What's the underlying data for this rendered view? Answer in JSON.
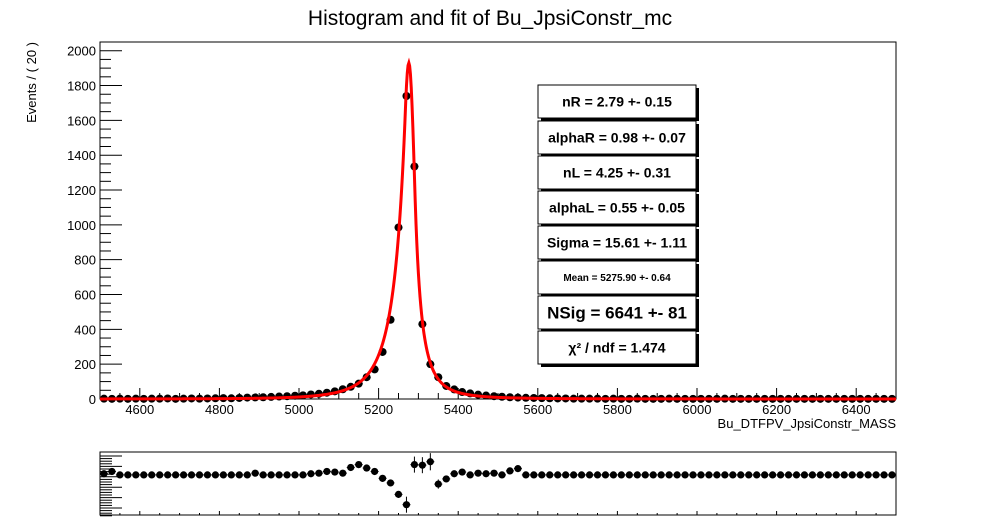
{
  "chart_data": [
    {
      "type": "scatter",
      "title": "Histogram and fit of Bu_JpsiConstr_mc",
      "xlabel": "Bu_DTFPV_JpsiConstr_MASS",
      "ylabel": "Events / ( 20 )",
      "xlim": [
        4500,
        6500
      ],
      "ylim": [
        0,
        2050
      ],
      "x_ticks": [
        4600,
        4800,
        5000,
        5200,
        5400,
        5600,
        5800,
        6000,
        6200,
        6400
      ],
      "y_ticks": [
        0,
        200,
        400,
        600,
        800,
        1000,
        1200,
        1400,
        1600,
        1800,
        2000
      ],
      "grid": false,
      "colors": {
        "data": "#000000",
        "fit": "#ff0000"
      },
      "series": [
        {
          "kind": "points",
          "x": [
            4510,
            4530,
            4550,
            4570,
            4590,
            4610,
            4630,
            4650,
            4670,
            4690,
            4710,
            4730,
            4750,
            4770,
            4790,
            4810,
            4830,
            4850,
            4870,
            4890,
            4910,
            4930,
            4950,
            4970,
            4990,
            5010,
            5030,
            5050,
            5070,
            5090,
            5110,
            5130,
            5150,
            5170,
            5190,
            5210,
            5230,
            5250,
            5270,
            5290,
            5310,
            5330,
            5350,
            5370,
            5390,
            5410,
            5430,
            5450,
            5470,
            5490,
            5510,
            5530,
            5550,
            5570,
            5590,
            5610,
            5630,
            5650,
            5670,
            5690,
            5710,
            5730,
            5750,
            5770,
            5790,
            5810,
            5830,
            5850,
            5870,
            5890,
            5910,
            5930,
            5950,
            5970,
            5990,
            6010,
            6030,
            6050,
            6070,
            6090,
            6110,
            6130,
            6150,
            6170,
            6190,
            6210,
            6230,
            6250,
            6270,
            6290,
            6310,
            6330,
            6350,
            6370,
            6390,
            6410,
            6430,
            6450,
            6470,
            6490
          ],
          "y": [
            2,
            1,
            2,
            1,
            2,
            1,
            2,
            2,
            3,
            1,
            2,
            3,
            2,
            3,
            4,
            5,
            4,
            6,
            8,
            9,
            10,
            12,
            14,
            16,
            19,
            21,
            26,
            30,
            36,
            44,
            56,
            70,
            88,
            125,
            170,
            270,
            455,
            985,
            1740,
            1335,
            430,
            200,
            125,
            75,
            55,
            40,
            32,
            25,
            20,
            16,
            13,
            10,
            8,
            7,
            6,
            5,
            4,
            3,
            3,
            2,
            2,
            2,
            2,
            1,
            2,
            1,
            1,
            2,
            1,
            1,
            1,
            2,
            1,
            1,
            1,
            1,
            1,
            1,
            2,
            1,
            1,
            1,
            1,
            1,
            1,
            1,
            1,
            1,
            1,
            1,
            1,
            1,
            1,
            1,
            1,
            1,
            1,
            1,
            1,
            1
          ]
        },
        {
          "kind": "fit",
          "mean": 5275.9,
          "sigma": 15.61,
          "alphaL": 0.55,
          "nL": 4.25,
          "alphaR": 0.98,
          "nR": 2.79,
          "peak": 1930
        }
      ]
    },
    {
      "type": "scatter",
      "title": "",
      "xlim": [
        4500,
        6500
      ],
      "series": [
        {
          "kind": "pull",
          "x": [
            4510,
            4530,
            4550,
            4570,
            4590,
            4610,
            4630,
            4650,
            4670,
            4690,
            4710,
            4730,
            4750,
            4770,
            4790,
            4810,
            4830,
            4850,
            4870,
            4890,
            4910,
            4930,
            4950,
            4970,
            4990,
            5010,
            5030,
            5050,
            5070,
            5090,
            5110,
            5130,
            5150,
            5170,
            5190,
            5210,
            5230,
            5250,
            5270,
            5290,
            5310,
            5330,
            5350,
            5370,
            5390,
            5410,
            5430,
            5450,
            5470,
            5490,
            5510,
            5530,
            5550,
            5570,
            5590,
            5610,
            5630,
            5650,
            5670,
            5690,
            5710,
            5730,
            5750,
            5770,
            5790,
            5810,
            5830,
            5850,
            5870,
            5890,
            5910,
            5930,
            5950,
            5970,
            5990,
            6010,
            6030,
            6050,
            6070,
            6090,
            6110,
            6130,
            6150,
            6170,
            6190,
            6210,
            6230,
            6250,
            6270,
            6290,
            6310,
            6330,
            6350,
            6370,
            6390,
            6410,
            6430,
            6450,
            6470,
            6490
          ],
          "y": [
            0.2,
            0.6,
            0,
            0,
            0,
            0,
            0,
            0,
            0,
            0,
            0,
            0,
            0,
            0,
            0,
            0,
            0,
            0,
            0,
            0.3,
            0,
            0,
            0,
            0,
            0,
            0,
            0.2,
            0.3,
            0.6,
            0.5,
            0.3,
            1.3,
            1.8,
            1.2,
            0.6,
            -0.6,
            -1.4,
            -3.4,
            -5.2,
            1.8,
            1.7,
            2.3,
            -1.6,
            -0.7,
            0.2,
            0.5,
            0,
            0.3,
            0.2,
            0.3,
            0,
            0.7,
            1.1,
            0,
            0,
            0,
            0,
            0,
            0,
            0,
            0,
            0,
            0,
            0,
            0,
            0,
            0,
            0,
            0,
            0,
            0,
            0,
            0,
            0,
            0,
            0,
            0,
            0,
            0,
            0,
            0,
            0,
            0,
            0,
            0,
            0,
            0,
            0,
            0,
            0,
            0,
            0,
            0,
            0,
            0,
            0,
            0,
            0,
            0,
            0
          ],
          "yerr": [
            0.3,
            0.3,
            0.3,
            0.3,
            0.3,
            0.3,
            0.3,
            0.3,
            0.3,
            0.3,
            0.3,
            0.3,
            0.3,
            0.3,
            0.3,
            0.3,
            0.3,
            0.3,
            0.3,
            0.3,
            0.3,
            0.3,
            0.3,
            0.3,
            0.3,
            0.3,
            0.3,
            0.3,
            0.3,
            0.3,
            0.3,
            0.4,
            0.4,
            0.4,
            0.4,
            0.4,
            0.5,
            0.6,
            1.4,
            1.4,
            1.4,
            1.5,
            0.8,
            0.4,
            0.3,
            0.3,
            0.3,
            0.3,
            0.3,
            0.3,
            0.3,
            0.3,
            0.3,
            0.3,
            0.3,
            0.3,
            0.3,
            0.3,
            0.3,
            0.3,
            0.3,
            0.3,
            0.3,
            0.3,
            0.3,
            0.3,
            0.3,
            0.3,
            0.3,
            0.3,
            0.3,
            0.3,
            0.3,
            0.3,
            0.3,
            0.3,
            0.3,
            0.3,
            0.3,
            0.3,
            0.3,
            0.3,
            0.3,
            0.3,
            0.3,
            0.3,
            0.3,
            0.3,
            0.3,
            0.3,
            0.3,
            0.3,
            0.3,
            0.3,
            0.3,
            0.3,
            0.3,
            0.3,
            0.3,
            0.3
          ]
        }
      ]
    }
  ],
  "params_box": {
    "items": [
      {
        "key": "nR",
        "text": "nR = 2.79 +- 0.15",
        "size": "normal"
      },
      {
        "key": "alphaR",
        "text": "alphaR = 0.98 +- 0.07",
        "size": "normal"
      },
      {
        "key": "nL",
        "text": "nL = 4.25 +- 0.31",
        "size": "normal"
      },
      {
        "key": "alphaL",
        "text": "alphaL = 0.55 +- 0.05",
        "size": "normal"
      },
      {
        "key": "sigma",
        "text": "Sigma = 15.61 +- 1.11",
        "size": "normal"
      },
      {
        "key": "mean",
        "text": "Mean = 5275.90 +- 0.64",
        "size": "small"
      },
      {
        "key": "nsig",
        "text": "NSig = 6641 +- 81",
        "size": "large"
      },
      {
        "key": "chi2",
        "text": "χ² / ndf = 1.474",
        "size": "normal"
      }
    ]
  }
}
